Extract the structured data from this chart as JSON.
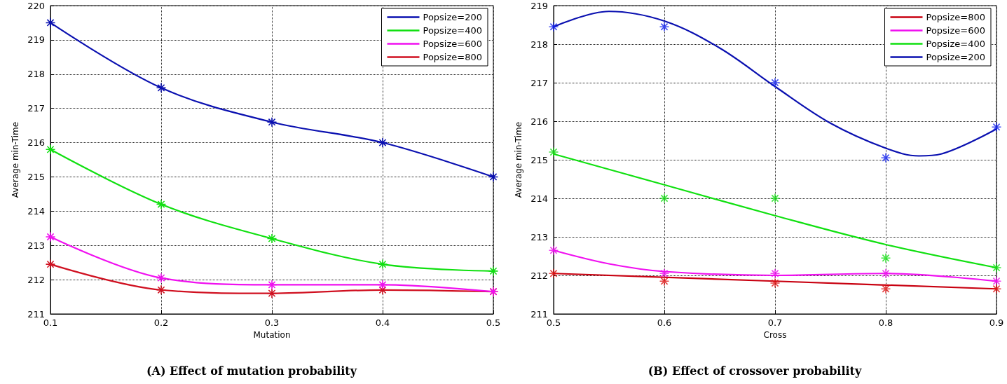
{
  "chart_data": [
    {
      "type": "line",
      "title": "(A) Effect of mutation probability",
      "xlabel": "Mutation",
      "ylabel": "Average min-Time",
      "xlim": [
        0.1,
        0.5
      ],
      "xticks": [
        0.1,
        0.2,
        0.3,
        0.4,
        0.5
      ],
      "ylim": [
        211,
        220
      ],
      "yticks": [
        211,
        212,
        213,
        214,
        215,
        216,
        217,
        218,
        219,
        220
      ],
      "grid": true,
      "legend": "top right",
      "marker": "star",
      "line_style": "solid",
      "x": [
        0.1,
        0.2,
        0.3,
        0.4,
        0.5
      ],
      "series": [
        {
          "name": "Popsize=200",
          "color": "#0a10b0",
          "values": [
            219.5,
            217.6,
            216.6,
            216.0,
            215.0
          ]
        },
        {
          "name": "Popsize=400",
          "color": "#10e010",
          "values": [
            215.8,
            214.2,
            213.2,
            212.45,
            212.25
          ]
        },
        {
          "name": "Popsize=600",
          "color": "#f010f0",
          "values": [
            213.25,
            212.05,
            211.85,
            211.85,
            211.65
          ]
        },
        {
          "name": "Popsize=800",
          "color": "#d01020",
          "values": [
            212.45,
            211.7,
            211.6,
            211.7,
            211.65
          ]
        }
      ]
    },
    {
      "type": "line",
      "title": "(B) Effect of crossover probability",
      "xlabel": "Cross",
      "ylabel": "Average min-Time",
      "xlim": [
        0.5,
        0.9
      ],
      "xticks": [
        0.5,
        0.6,
        0.7,
        0.8,
        0.9
      ],
      "ylim": [
        211,
        219
      ],
      "yticks": [
        211,
        212,
        213,
        214,
        215,
        216,
        217,
        218,
        219
      ],
      "grid": true,
      "legend": "top right",
      "line_style": "solid",
      "series": [
        {
          "name": "Popsize=800",
          "color": "#c80010",
          "marker": "none",
          "x": [
            0.5,
            0.7,
            0.9
          ],
          "values": [
            212.05,
            211.85,
            211.65
          ]
        },
        {
          "name": "Popsize=600",
          "color": "#f010f0",
          "marker": "none",
          "x": [
            0.5,
            0.55,
            0.6,
            0.7,
            0.8,
            0.9
          ],
          "values": [
            212.65,
            212.3,
            212.1,
            212.0,
            212.05,
            211.85
          ]
        },
        {
          "name": "Popsize=400",
          "color": "#10e010",
          "marker": "none",
          "x": [
            0.5,
            0.6,
            0.7,
            0.8,
            0.9
          ],
          "values": [
            215.15,
            214.35,
            213.55,
            212.8,
            212.2
          ]
        },
        {
          "name": "Popsize=200",
          "color": "#0a10b0",
          "marker": "none",
          "x": [
            0.5,
            0.55,
            0.6,
            0.65,
            0.7,
            0.75,
            0.8,
            0.83,
            0.85,
            0.9
          ],
          "values": [
            218.45,
            218.85,
            218.6,
            217.9,
            216.9,
            215.95,
            215.3,
            215.1,
            215.15,
            215.8
          ]
        },
        {
          "type": "scatter",
          "color": "#e01010",
          "marker": "star",
          "x": [
            0.5,
            0.6,
            0.7,
            0.8,
            0.9
          ],
          "values": [
            212.05,
            211.85,
            211.8,
            211.65,
            211.65
          ]
        },
        {
          "type": "scatter",
          "color": "#f010f0",
          "marker": "star",
          "x": [
            0.5,
            0.6,
            0.7,
            0.8,
            0.9
          ],
          "values": [
            212.65,
            212.05,
            212.05,
            212.05,
            211.85
          ]
        },
        {
          "type": "scatter",
          "color": "#10e010",
          "marker": "star",
          "x": [
            0.5,
            0.6,
            0.7,
            0.8,
            0.9
          ],
          "values": [
            215.2,
            214.0,
            214.0,
            212.45,
            212.2
          ]
        },
        {
          "type": "scatter",
          "color": "#1020f0",
          "marker": "star",
          "x": [
            0.5,
            0.6,
            0.7,
            0.8,
            0.9
          ],
          "values": [
            218.45,
            218.45,
            217.0,
            215.05,
            215.85
          ]
        }
      ]
    }
  ]
}
